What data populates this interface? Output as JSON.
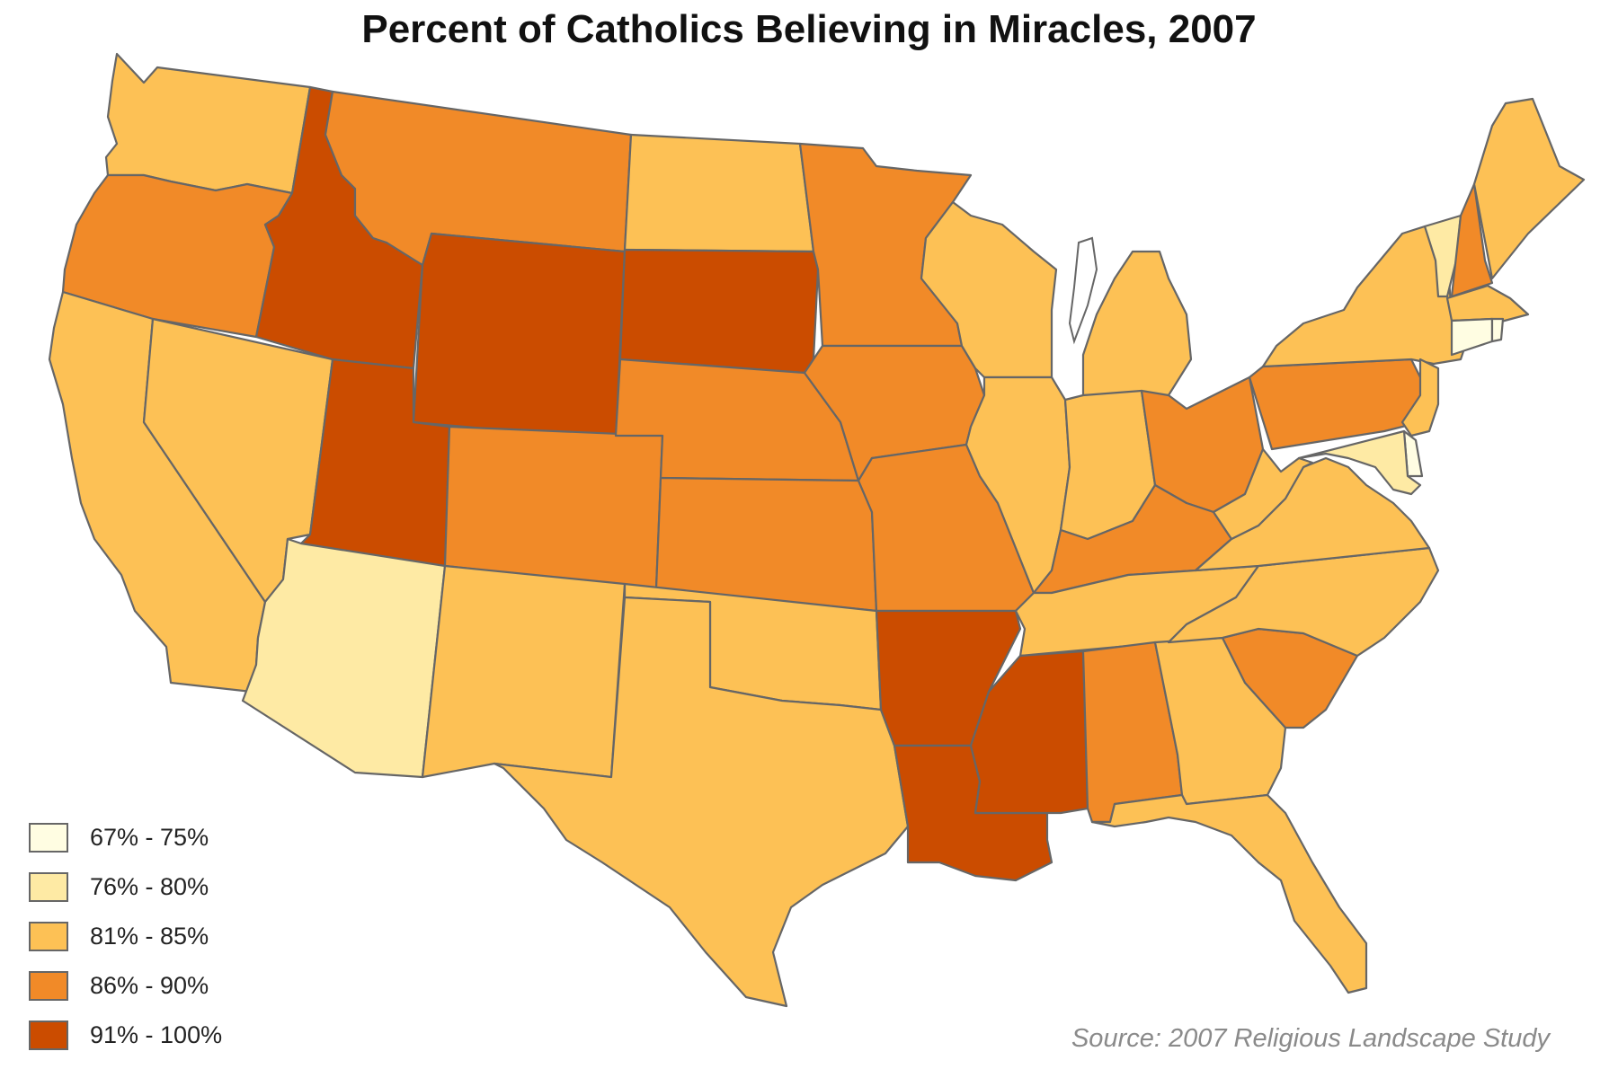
{
  "title": "Percent of Catholics Believing in Miracles, 2007",
  "source": "Source: 2007 Religious Landscape Study",
  "legend": [
    {
      "label": "67% - 75%",
      "color": "#fffde2"
    },
    {
      "label": "76% - 80%",
      "color": "#feeaa4"
    },
    {
      "label": "81% - 85%",
      "color": "#fdc155"
    },
    {
      "label": "86% - 90%",
      "color": "#f18a28"
    },
    {
      "label": "91% - 100%",
      "color": "#cb4c00"
    }
  ],
  "states": [
    {
      "code": "WA",
      "bin": 2
    },
    {
      "code": "OR",
      "bin": 3
    },
    {
      "code": "CA",
      "bin": 2
    },
    {
      "code": "NV",
      "bin": 2
    },
    {
      "code": "ID",
      "bin": 4
    },
    {
      "code": "MT",
      "bin": 3
    },
    {
      "code": "WY",
      "bin": 4
    },
    {
      "code": "UT",
      "bin": 4
    },
    {
      "code": "AZ",
      "bin": 1
    },
    {
      "code": "CO",
      "bin": 3
    },
    {
      "code": "NM",
      "bin": 2
    },
    {
      "code": "ND",
      "bin": 2
    },
    {
      "code": "SD",
      "bin": 4
    },
    {
      "code": "NE",
      "bin": 3
    },
    {
      "code": "KS",
      "bin": 3
    },
    {
      "code": "OK",
      "bin": 2
    },
    {
      "code": "TX",
      "bin": 2
    },
    {
      "code": "MN",
      "bin": 3
    },
    {
      "code": "IA",
      "bin": 3
    },
    {
      "code": "MO",
      "bin": 3
    },
    {
      "code": "AR",
      "bin": 4
    },
    {
      "code": "LA",
      "bin": 4
    },
    {
      "code": "WI",
      "bin": 2
    },
    {
      "code": "IL",
      "bin": 2
    },
    {
      "code": "MI",
      "bin": 2
    },
    {
      "code": "IN",
      "bin": 2
    },
    {
      "code": "OH",
      "bin": 3
    },
    {
      "code": "KY",
      "bin": 3
    },
    {
      "code": "TN",
      "bin": 2
    },
    {
      "code": "MS",
      "bin": 4
    },
    {
      "code": "AL",
      "bin": 3
    },
    {
      "code": "GA",
      "bin": 2
    },
    {
      "code": "FL",
      "bin": 2
    },
    {
      "code": "SC",
      "bin": 3
    },
    {
      "code": "NC",
      "bin": 2
    },
    {
      "code": "VA",
      "bin": 2
    },
    {
      "code": "WV",
      "bin": 2
    },
    {
      "code": "PA",
      "bin": 3
    },
    {
      "code": "NY",
      "bin": 2
    },
    {
      "code": "NJ",
      "bin": 2
    },
    {
      "code": "DE",
      "bin": 0
    },
    {
      "code": "MD",
      "bin": 1
    },
    {
      "code": "VT",
      "bin": 1
    },
    {
      "code": "NH",
      "bin": 3
    },
    {
      "code": "ME",
      "bin": 2
    },
    {
      "code": "MA",
      "bin": 2
    },
    {
      "code": "CT",
      "bin": 0
    },
    {
      "code": "RI",
      "bin": 0
    }
  ]
}
